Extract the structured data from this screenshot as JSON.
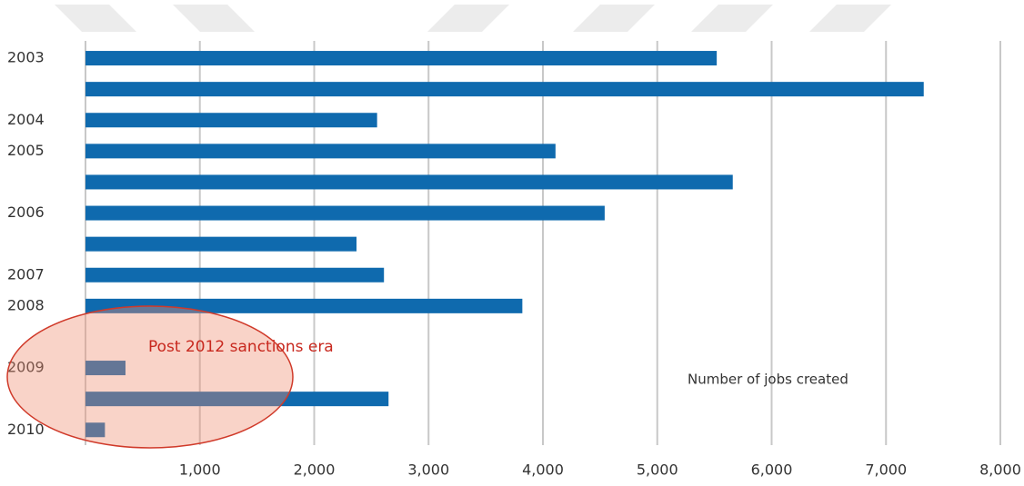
{
  "chart_data": {
    "type": "bar",
    "orientation": "horizontal",
    "categories": [
      "2003",
      null,
      "2004",
      "2005",
      null,
      "2006",
      null,
      "2007",
      "2008",
      null,
      "2009",
      null,
      "2010"
    ],
    "values": [
      5520,
      7330,
      2550,
      4110,
      5660,
      4540,
      2370,
      2610,
      3820,
      null,
      350,
      2650,
      170
    ],
    "color": "#0f6aae",
    "xlim": [
      0,
      8000
    ],
    "xticks": [
      {
        "value": 1000,
        "label": "1,000"
      },
      {
        "value": 2000,
        "label": "2,000"
      },
      {
        "value": 3000,
        "label": "3,000"
      },
      {
        "value": 4000,
        "label": "4,000"
      },
      {
        "value": 5000,
        "label": "5,000"
      },
      {
        "value": 6000,
        "label": "6,000"
      },
      {
        "value": 7000,
        "label": "7,000"
      },
      {
        "value": 8000,
        "label": "8,000"
      }
    ],
    "grid": true,
    "annotations": [
      "Post 2012 sanctions era",
      "Number of jobs created"
    ]
  }
}
